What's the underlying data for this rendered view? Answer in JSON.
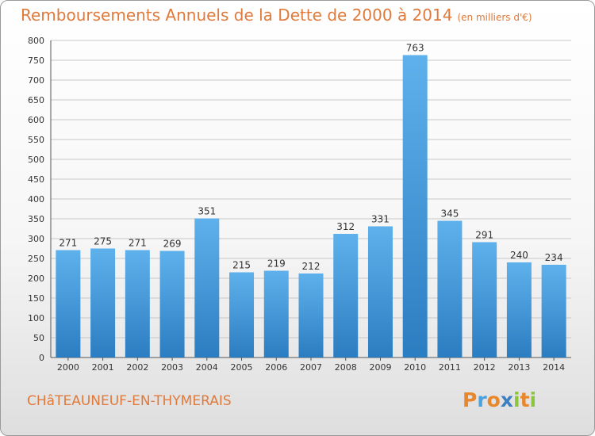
{
  "header": {
    "title": "Remboursements Annuels de la Dette de 2000 à 2014",
    "unit": "(en milliers d'€)"
  },
  "footer": {
    "city": "CHâTEAUNEUF-EN-THYMERAIS",
    "logo": {
      "letters": [
        "P",
        "r",
        "o",
        "x",
        "i",
        "t",
        "i"
      ],
      "colors": [
        "#e8872b",
        "#4aa3df",
        "#e8872b",
        "#3c7fc0",
        "#8cc63f",
        "#e8872b",
        "#8cc63f"
      ]
    }
  },
  "chart_data": {
    "type": "bar",
    "title": "Remboursements Annuels de la Dette de 2000 à 2014",
    "categories": [
      "2000",
      "2001",
      "2002",
      "2003",
      "2004",
      "2005",
      "2006",
      "2007",
      "2008",
      "2009",
      "2010",
      "2011",
      "2012",
      "2013",
      "2014"
    ],
    "values": [
      271,
      275,
      271,
      269,
      351,
      215,
      219,
      212,
      312,
      331,
      763,
      345,
      291,
      240,
      234
    ],
    "ylim": [
      0,
      800
    ],
    "yticks": [
      0,
      50,
      100,
      150,
      200,
      250,
      300,
      350,
      400,
      450,
      500,
      550,
      600,
      650,
      700,
      750,
      800
    ],
    "grid": true,
    "bar_color_light": "#5fb1ec",
    "bar_color_dark": "#2b7dc1",
    "grid_color": "#c8c8c8"
  }
}
